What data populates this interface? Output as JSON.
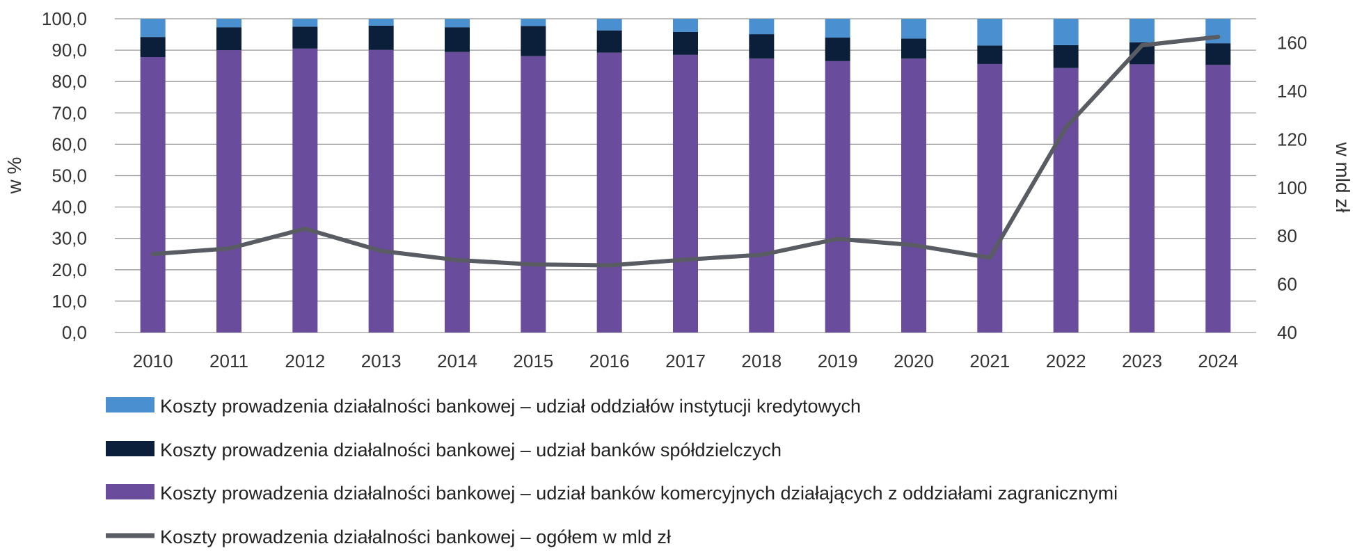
{
  "chart_data": {
    "type": "bar",
    "stacked": true,
    "categories": [
      "2010",
      "2011",
      "2012",
      "2013",
      "2014",
      "2015",
      "2016",
      "2017",
      "2018",
      "2019",
      "2020",
      "2021",
      "2022",
      "2023",
      "2024"
    ],
    "y_left": {
      "label": "w %",
      "lim": [
        0,
        100
      ],
      "ticks": [
        "0,0",
        "10,0",
        "20,0",
        "30,0",
        "40,0",
        "50,0",
        "60,0",
        "70,0",
        "80,0",
        "90,0",
        "100,0"
      ]
    },
    "y_right": {
      "label": "w mld zł",
      "lim": [
        40,
        170
      ],
      "ticks": [
        "40",
        "60",
        "80",
        "100",
        "120",
        "140",
        "160"
      ]
    },
    "grid": true,
    "legend_position": "bottom",
    "series": [
      {
        "name": "Koszty prowadzenia działalności bankowej – udział banków komercyjnych działających z oddziałami zagranicznymi",
        "kind": "bar",
        "axis": "left",
        "color": "#6a4c9c",
        "values": [
          87.8,
          90.0,
          90.5,
          90.1,
          89.4,
          88.1,
          89.2,
          88.5,
          87.3,
          86.5,
          87.3,
          85.6,
          84.3,
          85.5,
          85.3
        ]
      },
      {
        "name": "Koszty prowadzenia działalności bankowej – udział banków spółdzielczych",
        "kind": "bar",
        "axis": "left",
        "color": "#0b1f3a",
        "values": [
          6.4,
          7.3,
          7.0,
          7.7,
          7.9,
          9.6,
          7.1,
          7.3,
          7.8,
          7.5,
          6.4,
          5.9,
          7.3,
          7.0,
          6.9
        ]
      },
      {
        "name": "Koszty prowadzenia działalności bankowej – udział oddziałów instytucji kredytowych",
        "kind": "bar",
        "axis": "left",
        "color": "#4a90d0",
        "values": [
          5.8,
          2.7,
          2.5,
          2.2,
          2.7,
          2.3,
          3.7,
          4.2,
          4.9,
          6.0,
          6.3,
          8.5,
          8.4,
          7.5,
          7.8
        ]
      },
      {
        "name": "Koszty prowadzenia działalności bankowej – ogółem w mld zł",
        "kind": "line",
        "axis": "right",
        "color": "#595d63",
        "values": [
          72.5,
          74.8,
          83.0,
          73.8,
          70.0,
          68.2,
          67.8,
          70.2,
          72.2,
          78.8,
          76.2,
          71.0,
          125.0,
          159.0,
          162.5
        ]
      }
    ],
    "legend_order": [
      2,
      1,
      0,
      3
    ]
  }
}
